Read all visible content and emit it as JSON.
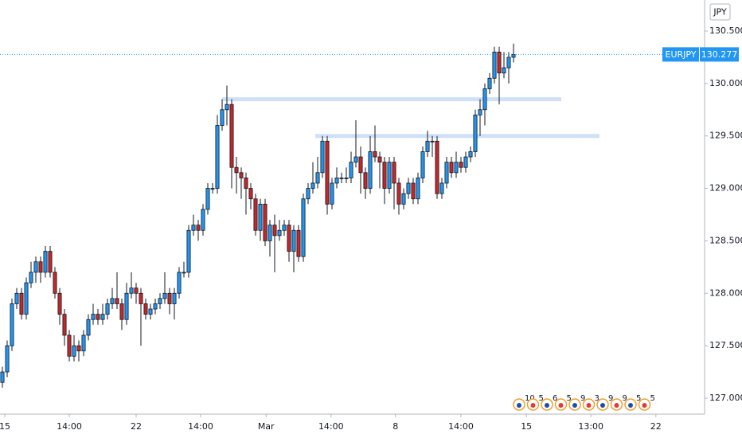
{
  "chart_data": {
    "type": "candlestick",
    "symbol": "EURJPY",
    "currency": "JPY",
    "up_color": "#2196f3",
    "down_color": "#c62828",
    "open": [
      127.15,
      127.25,
      127.5,
      127.9,
      128.0,
      127.8,
      128.1,
      128.2,
      128.3,
      128.2,
      128.4,
      128.2,
      128.0,
      127.8,
      127.6,
      127.4,
      127.5,
      127.45,
      127.6,
      127.75,
      127.8,
      127.75,
      127.8,
      127.9,
      127.95,
      127.9,
      127.75,
      128.0,
      128.05,
      128.0,
      127.9,
      127.8,
      127.85,
      127.9,
      127.95,
      128.0,
      127.9,
      128.0,
      128.2,
      128.2,
      128.6,
      128.65,
      128.6,
      128.8,
      129.0,
      129.0,
      129.6,
      129.75,
      129.8,
      129.2,
      129.15,
      129.1,
      129.0,
      128.9,
      128.6,
      128.85,
      128.5,
      128.65,
      128.55,
      128.6,
      128.65,
      128.4,
      128.6,
      128.35,
      128.9,
      129.0,
      129.05,
      129.15,
      129.45,
      128.85,
      129.05,
      129.1,
      129.1,
      129.1,
      129.25,
      129.3,
      129.15,
      129.0,
      129.35,
      129.3,
      129.25,
      129.0,
      129.25,
      129.05,
      128.85,
      128.95,
      129.05,
      128.9,
      129.1,
      129.35,
      129.45,
      129.45,
      128.95,
      129.05,
      129.25,
      129.15,
      129.25,
      129.2,
      129.3,
      129.35,
      129.7,
      129.75,
      129.95,
      130.05,
      130.3,
      130.1,
      130.15,
      130.25
    ],
    "high": [
      127.3,
      127.55,
      127.95,
      128.05,
      128.05,
      128.15,
      128.3,
      128.35,
      128.35,
      128.45,
      128.45,
      128.25,
      128.05,
      127.85,
      127.65,
      127.6,
      127.55,
      127.65,
      127.8,
      127.9,
      127.85,
      127.9,
      127.95,
      128.05,
      128.2,
      127.95,
      128.1,
      128.2,
      128.1,
      128.05,
      127.95,
      127.9,
      127.95,
      128.0,
      128.2,
      128.05,
      128.05,
      128.25,
      128.3,
      128.65,
      128.75,
      128.7,
      128.85,
      129.05,
      129.05,
      129.7,
      129.85,
      129.98,
      129.85,
      129.3,
      129.2,
      129.15,
      129.05,
      128.95,
      128.9,
      128.9,
      128.7,
      128.75,
      128.7,
      128.7,
      128.7,
      128.65,
      128.65,
      128.95,
      129.05,
      129.25,
      129.3,
      129.5,
      129.5,
      129.1,
      129.2,
      129.15,
      129.2,
      129.35,
      129.65,
      129.4,
      129.2,
      129.5,
      129.6,
      129.35,
      129.3,
      129.3,
      129.3,
      129.1,
      129.0,
      129.1,
      129.1,
      129.15,
      129.4,
      129.55,
      129.5,
      129.5,
      129.1,
      129.3,
      129.3,
      129.35,
      129.3,
      129.35,
      129.4,
      129.75,
      129.85,
      130.0,
      130.1,
      130.35,
      130.35,
      130.3,
      130.3,
      130.38
    ],
    "low": [
      127.1,
      127.2,
      127.45,
      127.85,
      127.75,
      127.75,
      128.05,
      128.1,
      128.1,
      128.15,
      128.15,
      127.95,
      127.7,
      127.5,
      127.35,
      127.35,
      127.35,
      127.4,
      127.55,
      127.7,
      127.7,
      127.7,
      127.75,
      127.85,
      127.85,
      127.65,
      127.7,
      127.95,
      127.9,
      127.5,
      127.75,
      127.75,
      127.8,
      127.85,
      127.9,
      127.8,
      127.75,
      127.95,
      128.15,
      128.15,
      128.55,
      128.5,
      128.55,
      128.75,
      128.95,
      128.95,
      129.55,
      129.6,
      129.0,
      128.95,
      128.9,
      128.75,
      128.8,
      128.55,
      128.5,
      128.45,
      128.35,
      128.2,
      128.5,
      128.55,
      128.3,
      128.2,
      128.3,
      128.3,
      128.85,
      128.95,
      129.0,
      129.1,
      128.75,
      128.8,
      129.0,
      129.05,
      129.05,
      129.05,
      129.2,
      128.95,
      128.9,
      128.95,
      129.25,
      129.0,
      128.85,
      128.95,
      128.8,
      128.75,
      128.8,
      128.9,
      128.85,
      128.85,
      129.05,
      129.3,
      129.3,
      128.9,
      128.9,
      129.0,
      129.1,
      129.1,
      129.15,
      129.15,
      129.25,
      129.3,
      129.5,
      129.6,
      129.9,
      130.0,
      129.8,
      130.05,
      130.0,
      130.2
    ],
    "close": [
      127.25,
      127.5,
      127.9,
      128.0,
      127.8,
      128.1,
      128.2,
      128.3,
      128.2,
      128.4,
      128.2,
      128.0,
      127.8,
      127.6,
      127.4,
      127.5,
      127.45,
      127.6,
      127.75,
      127.8,
      127.75,
      127.8,
      127.9,
      127.95,
      127.9,
      127.75,
      128.0,
      128.05,
      128.0,
      127.9,
      127.8,
      127.85,
      127.9,
      127.95,
      128.0,
      127.9,
      128.0,
      128.2,
      128.2,
      128.6,
      128.65,
      128.6,
      128.8,
      129.0,
      129.0,
      129.6,
      129.75,
      129.8,
      129.2,
      129.15,
      129.1,
      129.0,
      128.9,
      128.6,
      128.85,
      128.5,
      128.65,
      128.55,
      128.6,
      128.65,
      128.4,
      128.6,
      128.35,
      128.9,
      129.0,
      129.05,
      129.15,
      129.45,
      128.85,
      129.05,
      129.1,
      129.1,
      129.1,
      129.25,
      129.3,
      129.15,
      129.0,
      129.35,
      129.3,
      129.25,
      129.0,
      129.25,
      129.05,
      128.85,
      128.95,
      129.05,
      128.9,
      129.1,
      129.35,
      129.45,
      129.45,
      128.95,
      129.05,
      129.25,
      129.15,
      129.25,
      129.2,
      129.3,
      129.35,
      129.7,
      129.75,
      129.95,
      130.05,
      130.3,
      130.1,
      130.15,
      130.25,
      130.277
    ],
    "xlim": [
      -0.5,
      147
    ],
    "ylim": [
      126.848,
      130.796
    ],
    "yticks": [
      {
        "value": 127.0,
        "label": "127.000"
      },
      {
        "value": 127.5,
        "label": "127.500"
      },
      {
        "value": 128.0,
        "label": "128.000"
      },
      {
        "value": 128.5,
        "label": "128.500"
      },
      {
        "value": 129.0,
        "label": "129.000"
      },
      {
        "value": 129.5,
        "label": "129.500"
      },
      {
        "value": 130.0,
        "label": "130.000"
      },
      {
        "value": 130.5,
        "label": "130.500"
      }
    ],
    "xticks": [
      {
        "value": 0.5,
        "label": "15"
      },
      {
        "value": 14,
        "label": "14:00"
      },
      {
        "value": 28,
        "label": "22"
      },
      {
        "value": 41.5,
        "label": "14:00"
      },
      {
        "value": 55.2,
        "label": "Mar"
      },
      {
        "value": 68.8,
        "label": "14:00"
      },
      {
        "value": 82.3,
        "label": "8"
      },
      {
        "value": 96,
        "label": "14:00"
      },
      {
        "value": 109.7,
        "label": "15"
      },
      {
        "value": 123.2,
        "label": "13:00"
      },
      {
        "value": 136.8,
        "label": "22"
      }
    ],
    "levels": [
      {
        "value": 129.85,
        "from": 46,
        "to": 117
      },
      {
        "value": 129.5,
        "from": 65.5,
        "to": 125
      }
    ],
    "events": [
      "10",
      "5",
      "6",
      "5",
      "9",
      "3",
      "9",
      "9",
      "5",
      "5"
    ]
  }
}
